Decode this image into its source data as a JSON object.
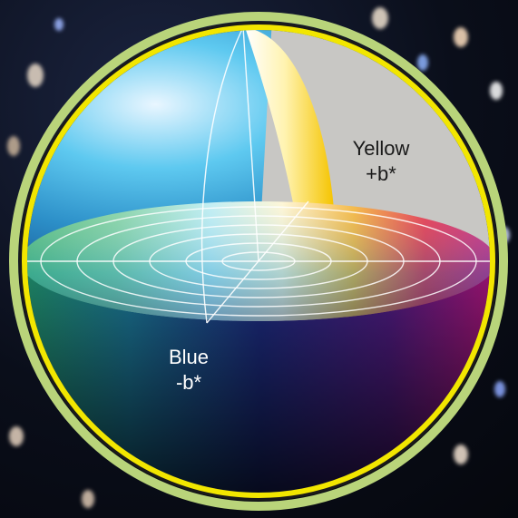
{
  "labels": {
    "yellow": {
      "name": "Yellow",
      "axis": "+b*"
    },
    "blue": {
      "name": "Blue",
      "axis": "-b*"
    }
  },
  "colors": {
    "background": "#0b0f1c",
    "outer_ring": "#b9d47a",
    "inner_ring": "#f2e600",
    "ring_gap": "#1a1a1a",
    "yellow_label_text": "#1a1a1a",
    "blue_label_text": "#ffffff"
  }
}
